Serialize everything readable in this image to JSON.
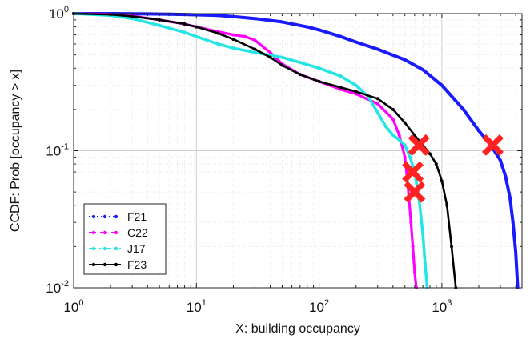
{
  "chart_data": {
    "type": "line",
    "xlabel": "X: building occupancy",
    "ylabel": "CCDF: Prob [occupancy > x]",
    "xscale": "log",
    "yscale": "log",
    "xlim": [
      1,
      4500
    ],
    "ylim": [
      0.01,
      1
    ],
    "grid": true,
    "legend_position": "bottom-left",
    "x_ticks": [
      {
        "base": "10",
        "exp": "0",
        "value": 1
      },
      {
        "base": "10",
        "exp": "1",
        "value": 10
      },
      {
        "base": "10",
        "exp": "2",
        "value": 100
      },
      {
        "base": "10",
        "exp": "3",
        "value": 1000
      }
    ],
    "y_ticks": [
      {
        "base": "10",
        "exp": "0",
        "value": 1
      },
      {
        "base": "10",
        "exp": "-1",
        "value": 0.1
      },
      {
        "base": "10",
        "exp": "-2",
        "value": 0.01
      }
    ],
    "series": [
      {
        "name": "F21",
        "color": "#1a1aff",
        "style": "dotted",
        "x": [
          1,
          2,
          4,
          6,
          8,
          10,
          15,
          20,
          30,
          50,
          80,
          100,
          150,
          200,
          300,
          500,
          700,
          1000,
          1500,
          2000,
          2500,
          3000,
          3300,
          3600,
          3800,
          4000,
          4150
        ],
        "y": [
          1.0,
          1.0,
          0.995,
          0.99,
          0.985,
          0.98,
          0.97,
          0.95,
          0.92,
          0.87,
          0.8,
          0.76,
          0.68,
          0.62,
          0.55,
          0.46,
          0.39,
          0.3,
          0.2,
          0.14,
          0.11,
          0.085,
          0.065,
          0.045,
          0.03,
          0.018,
          0.01
        ]
      },
      {
        "name": "C22",
        "color": "#ff00ff",
        "style": "dashed",
        "x": [
          1,
          2,
          3,
          5,
          8,
          10,
          15,
          20,
          25,
          30,
          40,
          50,
          70,
          100,
          150,
          200,
          300,
          400,
          450,
          500,
          520,
          540,
          560,
          580,
          600,
          620
        ],
        "y": [
          1.0,
          0.99,
          0.96,
          0.9,
          0.84,
          0.8,
          0.74,
          0.7,
          0.68,
          0.64,
          0.52,
          0.43,
          0.36,
          0.32,
          0.28,
          0.26,
          0.22,
          0.17,
          0.13,
          0.09,
          0.065,
          0.045,
          0.03,
          0.02,
          0.013,
          0.01
        ]
      },
      {
        "name": "J17",
        "color": "#22e5e5",
        "style": "dash-dot",
        "x": [
          1,
          2,
          3,
          5,
          8,
          10,
          15,
          20,
          30,
          50,
          70,
          100,
          150,
          200,
          250,
          300,
          350,
          400,
          450,
          500,
          550,
          600,
          650,
          700,
          730,
          760
        ],
        "y": [
          1.0,
          0.97,
          0.92,
          0.82,
          0.73,
          0.68,
          0.6,
          0.56,
          0.52,
          0.48,
          0.44,
          0.4,
          0.35,
          0.3,
          0.25,
          0.19,
          0.15,
          0.13,
          0.12,
          0.11,
          0.09,
          0.07,
          0.045,
          0.025,
          0.015,
          0.01
        ]
      },
      {
        "name": "F23",
        "color": "#000000",
        "style": "solid",
        "x": [
          1,
          2,
          3,
          5,
          8,
          10,
          15,
          20,
          30,
          40,
          50,
          70,
          100,
          150,
          200,
          300,
          400,
          500,
          600,
          700,
          800,
          900,
          1000,
          1100,
          1200,
          1300
        ],
        "y": [
          1.0,
          0.985,
          0.955,
          0.9,
          0.84,
          0.8,
          0.72,
          0.65,
          0.55,
          0.48,
          0.42,
          0.36,
          0.32,
          0.29,
          0.27,
          0.24,
          0.2,
          0.16,
          0.13,
          0.11,
          0.095,
          0.08,
          0.06,
          0.04,
          0.02,
          0.01
        ]
      }
    ],
    "markers": [
      {
        "x": 650,
        "y": 0.11,
        "color": "#ff2222"
      },
      {
        "x": 2600,
        "y": 0.11,
        "color": "#ff2222"
      },
      {
        "x": 580,
        "y": 0.07,
        "color": "#ff2222"
      },
      {
        "x": 600,
        "y": 0.05,
        "color": "#ff2222"
      }
    ]
  }
}
